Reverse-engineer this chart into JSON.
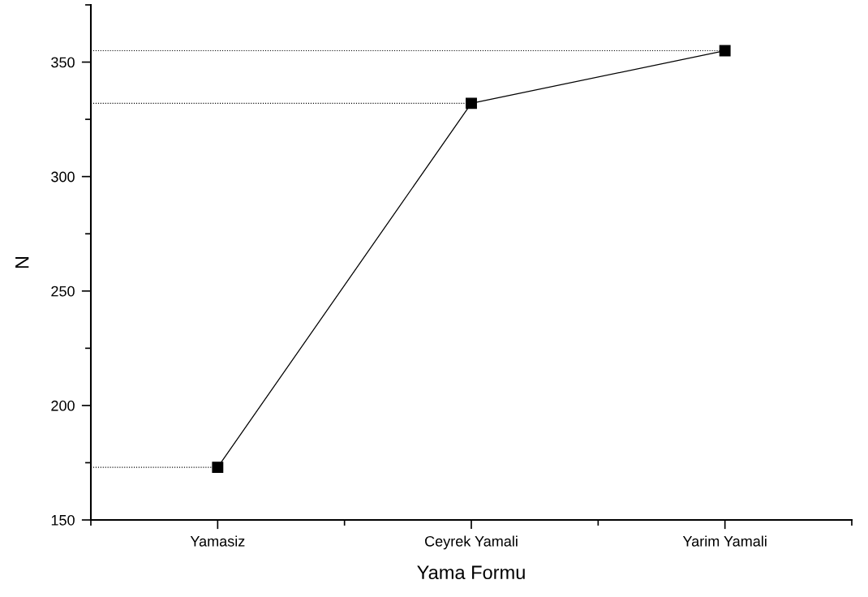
{
  "chart_data": {
    "type": "line",
    "xlabel": "Yama Formu",
    "ylabel": "N",
    "categories": [
      "Yamasiz",
      "Ceyrek Yamali",
      "Yarim Yamali"
    ],
    "series": [
      {
        "color": "#000000",
        "values": [
          173,
          332,
          355
        ]
      }
    ],
    "ylim": [
      150,
      375
    ],
    "yticks": [
      150,
      200,
      250,
      300,
      350
    ],
    "marker": "square",
    "line_style": "solid",
    "grid": false,
    "legend": false,
    "ref_lines": [
      {
        "axis": "y",
        "value": 173,
        "line_style": "dotted",
        "color": "#000000"
      },
      {
        "axis": "y",
        "value": 332,
        "line_style": "dotted",
        "color": "#000000"
      },
      {
        "axis": "y",
        "value": 355,
        "line_style": "dotted",
        "color": "#000000"
      }
    ]
  }
}
